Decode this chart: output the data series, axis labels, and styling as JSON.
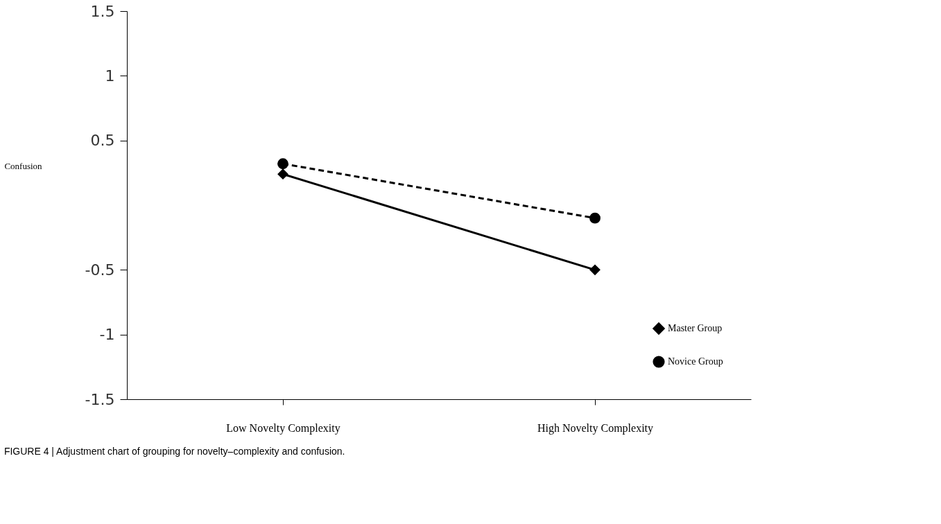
{
  "chart_data": {
    "type": "line",
    "categories": [
      "Low Novelty Complexity",
      "High Novelty Complexity"
    ],
    "ylabel": "Confusion",
    "ylim": [
      -1.5,
      1.5
    ],
    "yticks": [
      1.5,
      1,
      0.5,
      -0.5,
      -1,
      -1.5
    ],
    "series": [
      {
        "name": "Master Group",
        "color": "#000000",
        "values": [
          0.24,
          -0.5
        ],
        "marker": "diamond",
        "line_style": "solid"
      },
      {
        "name": "Novice Group",
        "color": "#000000",
        "values": [
          0.32,
          -0.1
        ],
        "marker": "circle",
        "line_style": "dashed"
      }
    ],
    "legend": "bottom right",
    "grid": false,
    "annotations": [
      "FIGURE 4 | Adjustment chart of grouping for novelty–complexity and confusion."
    ]
  }
}
